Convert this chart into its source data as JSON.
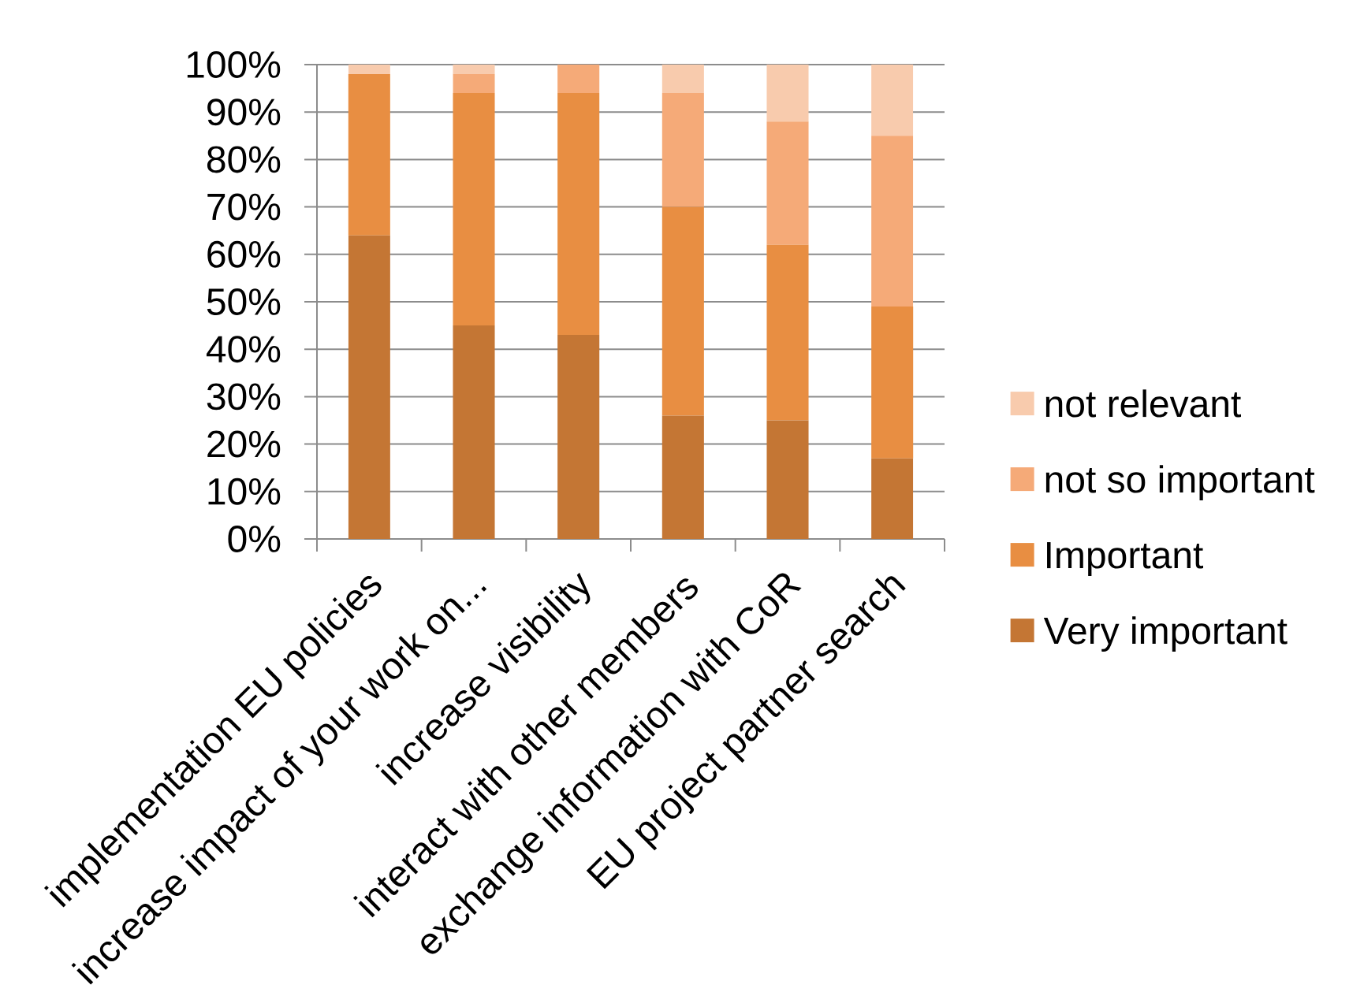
{
  "chart_data": {
    "type": "bar",
    "stacked": true,
    "categories": [
      "implementation EU policies",
      "increase impact of your work on...",
      "increase visibility",
      "interact with other members",
      "exchange information with CoR",
      "EU project partner search"
    ],
    "series": [
      {
        "name": "Very important",
        "color": "#c47634",
        "values": [
          64,
          45,
          43,
          26,
          25,
          17
        ]
      },
      {
        "name": "Important",
        "color": "#e88e42",
        "values": [
          34,
          49,
          51,
          44,
          37,
          32
        ]
      },
      {
        "name": "not so important",
        "color": "#f5aa78",
        "values": [
          0,
          4,
          6,
          24,
          26,
          36
        ]
      },
      {
        "name": "not relevant",
        "color": "#f8cbad",
        "values": [
          2,
          2,
          0,
          6,
          12,
          15
        ]
      }
    ],
    "ylim": [
      0,
      100
    ],
    "yticks": [
      {
        "value": 0,
        "label": "0%"
      },
      {
        "value": 10,
        "label": "10%"
      },
      {
        "value": 20,
        "label": "20%"
      },
      {
        "value": 30,
        "label": "30%"
      },
      {
        "value": 40,
        "label": "40%"
      },
      {
        "value": 50,
        "label": "50%"
      },
      {
        "value": 60,
        "label": "60%"
      },
      {
        "value": 70,
        "label": "70%"
      },
      {
        "value": 80,
        "label": "80%"
      },
      {
        "value": 90,
        "label": "90%"
      },
      {
        "value": 100,
        "label": "100%"
      }
    ],
    "grid": "y",
    "legend": "right"
  }
}
